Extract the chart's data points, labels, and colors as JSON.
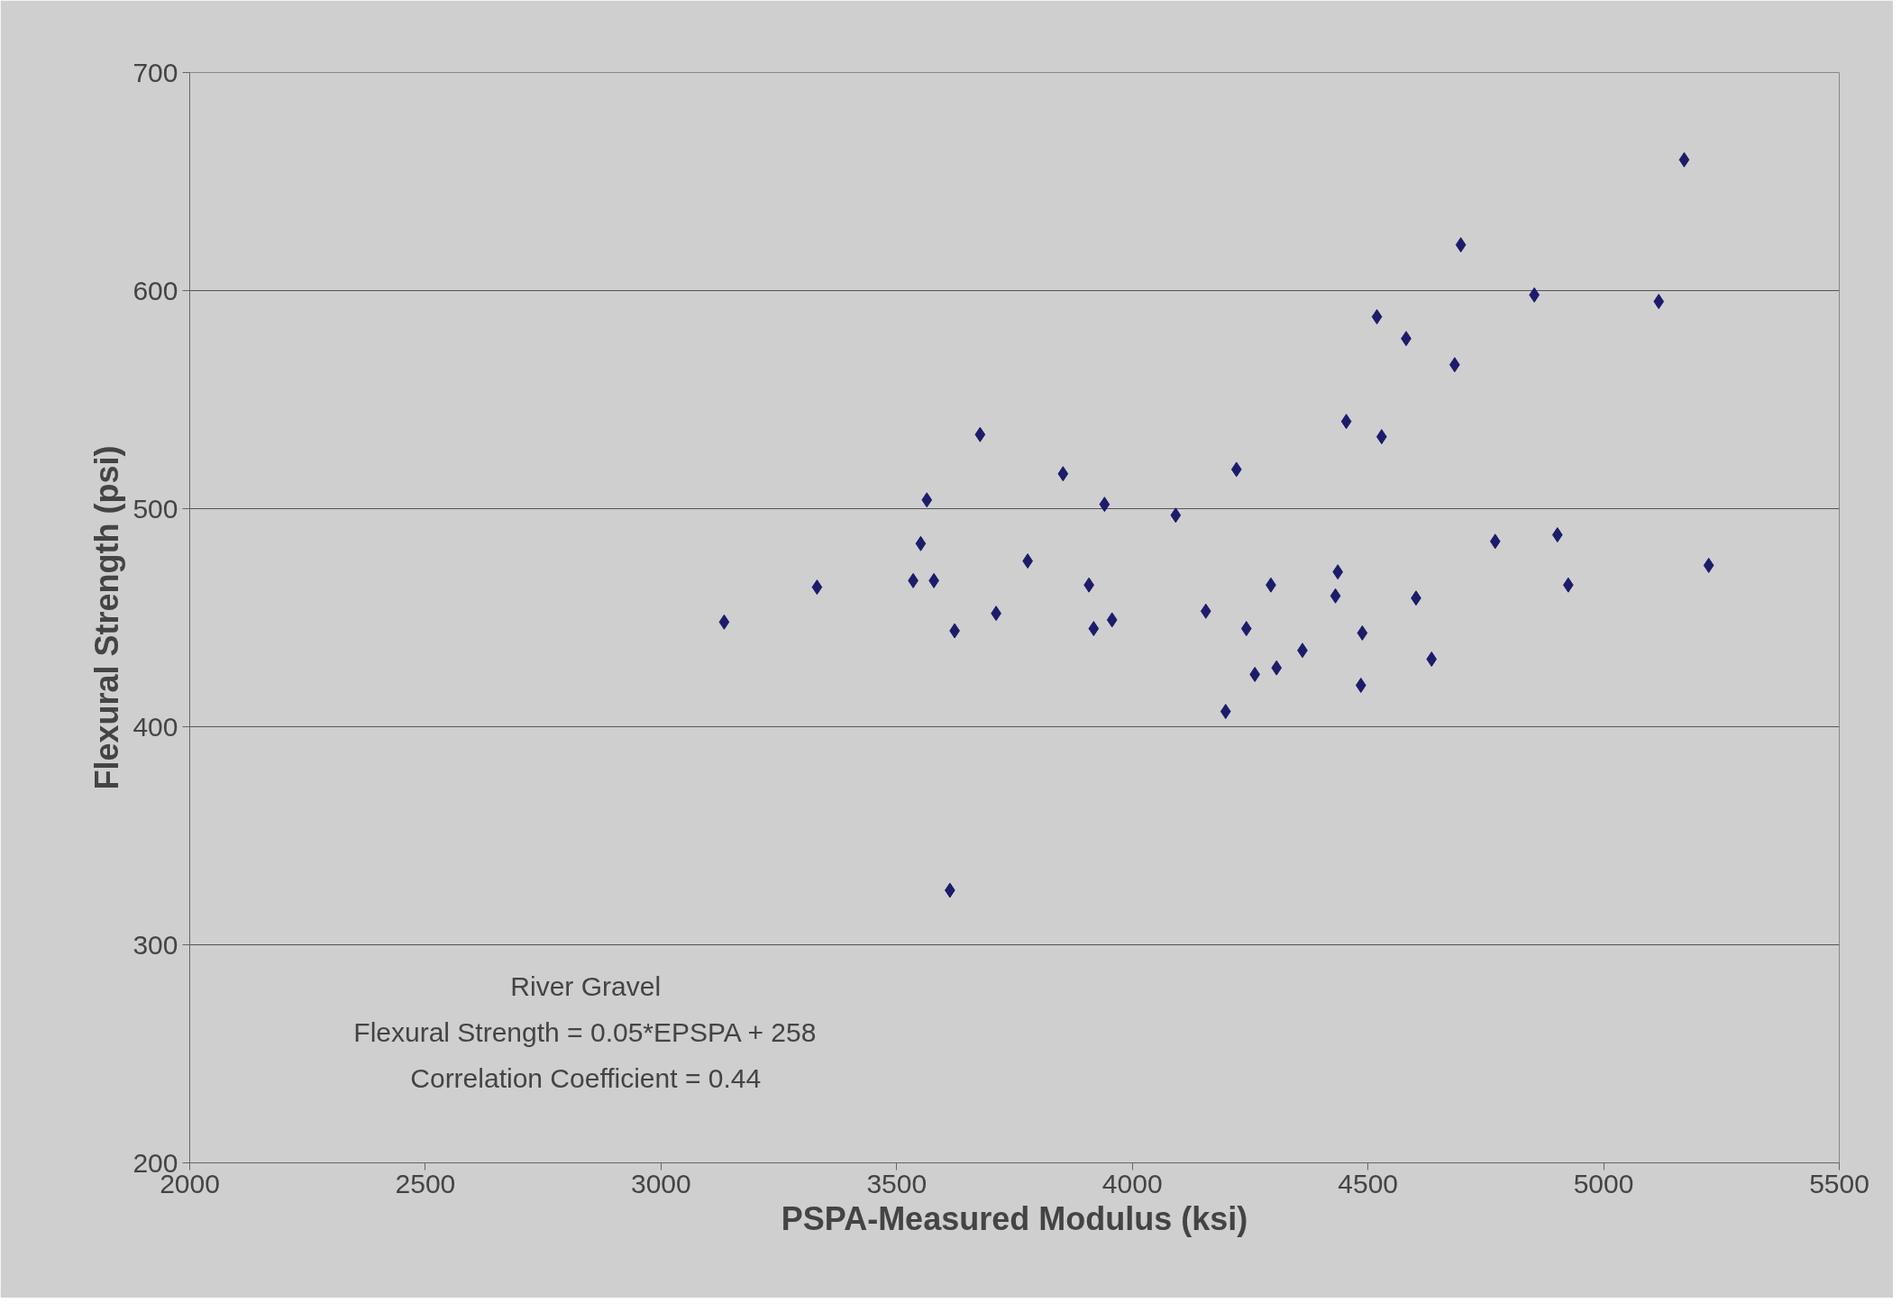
{
  "chart_data": {
    "type": "scatter",
    "xlabel": "PSPA-Measured Modulus (ksi)",
    "ylabel": "Flexural Strength (psi)",
    "x": [
      3134,
      3331,
      3535,
      3551,
      3564,
      3579,
      3623,
      3613,
      3677,
      3711,
      3778,
      3853,
      3908,
      3918,
      3941,
      3957,
      4092,
      4156,
      4198,
      4221,
      4242,
      4260,
      4294,
      4306,
      4361,
      4431,
      4436,
      4454,
      4488,
      4485,
      4519,
      4529,
      4581,
      4602,
      4635,
      4684,
      4697,
      4770,
      4853,
      4902,
      4925,
      5117,
      5171,
      5223
    ],
    "series": [
      {
        "color": "#1c1c6b",
        "values": [
          448,
          464,
          467,
          484,
          504,
          467,
          444,
          325,
          534,
          452,
          476,
          516,
          465,
          445,
          502,
          449,
          497,
          453,
          407,
          518,
          445,
          424,
          465,
          427,
          435,
          460,
          471,
          540,
          443,
          419,
          588,
          533,
          578,
          459,
          431,
          566,
          621,
          485,
          598,
          488,
          465,
          595,
          660,
          474
        ]
      }
    ],
    "xlim": [
      2000,
      5500
    ],
    "xticks": [
      2000,
      2500,
      3000,
      3500,
      4000,
      4500,
      5000,
      5500
    ],
    "ylim": [
      200,
      700
    ],
    "yticks": [
      200,
      300,
      400,
      500,
      600,
      700
    ],
    "grid": "y",
    "marker": "diamond",
    "annotations": [
      "River Gravel",
      "Flexural Strength = 0.05*EPSPA + 258",
      "Correlation Coefficient = 0.44"
    ]
  }
}
